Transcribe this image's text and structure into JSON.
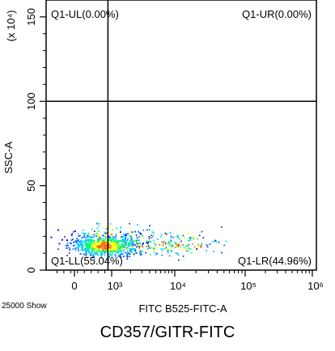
{
  "chart_data": {
    "type": "scatter",
    "title": "CD357/GITR-FITC",
    "xlabel": "FITC B525-FITC-A",
    "ylabel": "SSC-A",
    "y_multiplier_label": "(x 10⁴)",
    "x_scale": "log",
    "x_ticks": [
      "0",
      "10³",
      "10⁴",
      "10⁵",
      "10⁶"
    ],
    "y_ticks": [
      "0",
      "50",
      "100",
      "150"
    ],
    "ylim": [
      0,
      160
    ],
    "event_count_label": "25000 Show",
    "quadrant_gate": {
      "x_value": 900,
      "y_value": 100
    },
    "quadrants": [
      {
        "label": "Q1-UL(0.00%)",
        "percent": 0.0
      },
      {
        "label": "Q1-UR(0.00%)",
        "percent": 0.0
      },
      {
        "label": "Q1-LL(55.04%)",
        "percent": 55.04
      },
      {
        "label": "Q1-LR(44.96%)",
        "percent": 44.96
      }
    ],
    "population": {
      "x_median": 800,
      "y_median": 14,
      "events": 25000
    },
    "density_colors": [
      "#0000cc",
      "#0066ff",
      "#00ccff",
      "#00ff66",
      "#ffff00",
      "#ff6600"
    ]
  }
}
